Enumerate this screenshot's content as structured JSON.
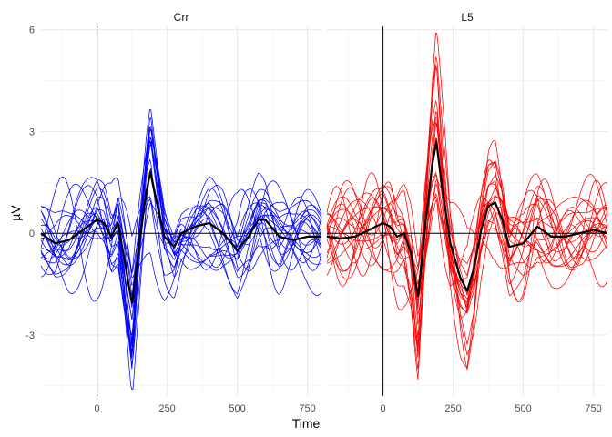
{
  "chart_data": {
    "type": "line",
    "xlabel": "Time",
    "ylabel": "µV",
    "xlim": [
      -200,
      800
    ],
    "ylim": [
      -4.8,
      6.1
    ],
    "x_ticks": [
      0,
      250,
      500,
      750
    ],
    "y_ticks": [
      -3,
      0,
      3,
      6
    ],
    "x_tick_labels": [
      "0",
      "250",
      "500",
      "750"
    ],
    "y_tick_labels": [
      "-3",
      "0",
      "3",
      "6"
    ],
    "grid": true,
    "legend": "none",
    "reference_lines": {
      "x": 0,
      "y": 0
    },
    "mean_color": "#000000",
    "panels": [
      {
        "label": "Crr",
        "trace_color": "#0000ff",
        "n_traces": 20,
        "mean_series": {
          "x": [
            -200,
            -150,
            -100,
            -50,
            0,
            25,
            50,
            75,
            100,
            125,
            150,
            175,
            190,
            210,
            240,
            275,
            300,
            350,
            400,
            450,
            500,
            540,
            575,
            600,
            650,
            700,
            750,
            800
          ],
          "y": [
            0.0,
            -0.3,
            -0.2,
            0.1,
            0.4,
            0.3,
            -0.1,
            0.3,
            -0.9,
            -2.1,
            -0.3,
            1.2,
            1.8,
            1.0,
            -0.1,
            -0.4,
            0.0,
            0.2,
            0.3,
            0.0,
            -0.5,
            -0.1,
            0.4,
            0.4,
            -0.1,
            -0.2,
            -0.1,
            -0.1
          ]
        }
      },
      {
        "label": "L5",
        "trace_color": "#ff0000",
        "n_traces": 20,
        "mean_series": {
          "x": [
            -200,
            -150,
            -100,
            -50,
            0,
            25,
            50,
            75,
            100,
            125,
            150,
            175,
            190,
            210,
            240,
            275,
            300,
            325,
            350,
            375,
            400,
            425,
            450,
            500,
            550,
            600,
            650,
            700,
            750,
            800
          ],
          "y": [
            -0.1,
            -0.15,
            -0.1,
            0.1,
            0.3,
            0.2,
            -0.1,
            0.0,
            -0.6,
            -1.9,
            0.2,
            2.0,
            2.7,
            1.4,
            -0.3,
            -1.3,
            -1.7,
            -1.0,
            0.1,
            0.8,
            0.9,
            0.4,
            -0.4,
            -0.3,
            0.2,
            -0.1,
            -0.1,
            0.0,
            0.1,
            0.0
          ]
        }
      }
    ]
  }
}
